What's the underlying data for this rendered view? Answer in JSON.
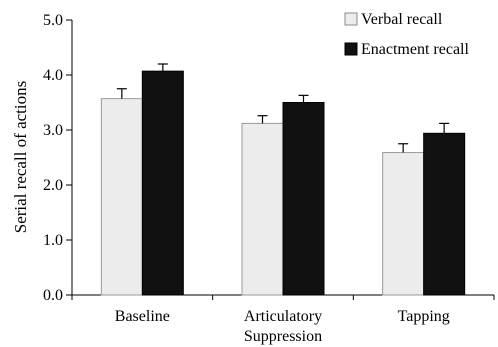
{
  "chart_data": {
    "type": "bar",
    "title": "",
    "xlabel": "",
    "ylabel": "Serial recall of actions",
    "ylim": [
      0,
      5
    ],
    "yticks": [
      "0.0",
      "1.0",
      "2.0",
      "3.0",
      "4.0",
      "5.0"
    ],
    "categories": [
      "Baseline",
      "Articulatory Suppression",
      "Tapping"
    ],
    "category_lines": [
      [
        "Baseline"
      ],
      [
        "Articulatory",
        "Suppression"
      ],
      [
        "Tapping"
      ]
    ],
    "series": [
      {
        "name": "Verbal recall",
        "values": [
          3.57,
          3.12,
          2.59
        ],
        "errors": [
          0.18,
          0.14,
          0.16
        ],
        "color": "#ececec"
      },
      {
        "name": "Enactment recall",
        "values": [
          4.07,
          3.5,
          2.94
        ],
        "errors": [
          0.13,
          0.13,
          0.18
        ],
        "color": "#111111"
      }
    ],
    "grid": false,
    "legend_position": "top-right",
    "error_bars": true
  }
}
